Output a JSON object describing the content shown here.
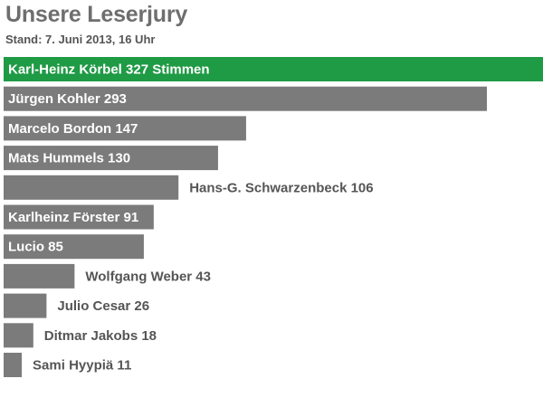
{
  "chart_data": {
    "type": "bar",
    "orientation": "horizontal",
    "title": "Unsere Leserjury",
    "subtitle": "Stand: 7. Juni 2013, 16 Uhr",
    "categories": [
      "Karl-Heinz Körbel",
      "Jürgen Kohler",
      "Marcelo Bordon",
      "Mats Hummels",
      "Hans-G. Schwarzenbeck",
      "Karlheinz Förster",
      "Lucio",
      "Wolfgang Weber",
      "Julio Cesar",
      "Ditmar Jakobs",
      "Sami Hyypiä"
    ],
    "values": [
      327,
      293,
      147,
      130,
      106,
      91,
      85,
      43,
      26,
      18,
      11
    ],
    "value_suffixes": [
      " Stimmen",
      "",
      "",
      "",
      "",
      "",
      "",
      "",
      "",
      "",
      ""
    ],
    "highlight_index": 0,
    "xlim": [
      0,
      327
    ],
    "grid": false,
    "legend": "none",
    "colors": {
      "highlight": "#1f9a45",
      "bar": "#7b7b7b",
      "label_inside": "#ffffff",
      "label_outside": "#555555",
      "title": "#6e6e6e"
    }
  }
}
